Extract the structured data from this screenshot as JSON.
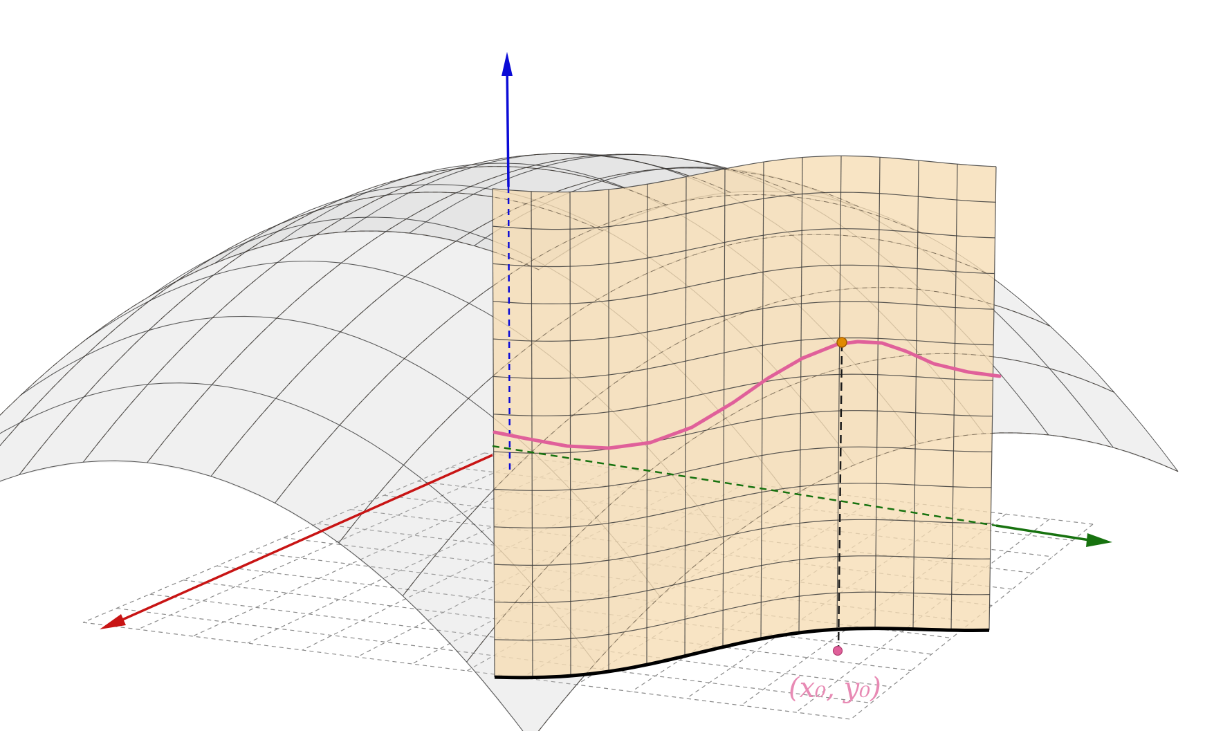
{
  "scene": {
    "point_label": "(x₀, y₀)",
    "colors": {
      "x_axis": "#c81414",
      "y_axis": "#17720f",
      "z_axis": "#0b0bd6",
      "surface_fill": "#c8c8c8",
      "surface_grid": "#2a2a2a",
      "wall_fill": "#f6dcb4",
      "wall_grid": "#3a3a3a",
      "trace_curve": "#e0609a",
      "base_curve": "#000000",
      "max_point": "#e08a00",
      "base_point": "#e0609a",
      "floor_grid": "#8a8a8a"
    },
    "icons": [
      "x-axis-arrow",
      "y-axis-arrow",
      "z-axis-arrow"
    ]
  }
}
